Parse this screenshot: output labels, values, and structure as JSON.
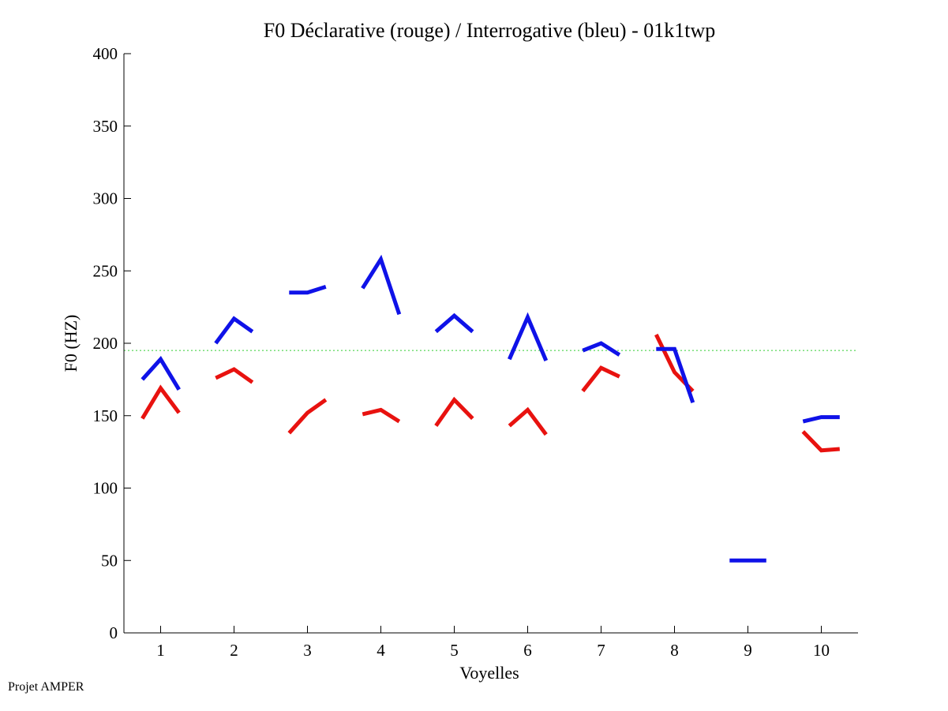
{
  "chart_data": {
    "type": "line",
    "title": "F0 Déclarative (rouge) / Interrogative (bleu) - 01k1twp",
    "xlabel": "Voyelles",
    "ylabel": "F0 (HZ)",
    "xlim": [
      0.5,
      10.5
    ],
    "ylim": [
      0,
      400
    ],
    "xticks": [
      1,
      2,
      3,
      4,
      5,
      6,
      7,
      8,
      9,
      10
    ],
    "yticks": [
      0,
      50,
      100,
      150,
      200,
      250,
      300,
      350,
      400
    ],
    "grid": false,
    "reference_line": {
      "y": 195,
      "color": "#33cc33",
      "style": "dotted"
    },
    "series": [
      {
        "name": "Déclarative",
        "color": "#e8120f",
        "segments": [
          {
            "vowel": 1,
            "points": [
              [
                0.75,
                148
              ],
              [
                1.0,
                169
              ],
              [
                1.25,
                152
              ]
            ]
          },
          {
            "vowel": 2,
            "points": [
              [
                1.75,
                176
              ],
              [
                2.0,
                182
              ],
              [
                2.25,
                173
              ]
            ]
          },
          {
            "vowel": 3,
            "points": [
              [
                2.75,
                138
              ],
              [
                3.0,
                152
              ],
              [
                3.25,
                161
              ]
            ]
          },
          {
            "vowel": 4,
            "points": [
              [
                3.75,
                151
              ],
              [
                4.0,
                154
              ],
              [
                4.25,
                146
              ]
            ]
          },
          {
            "vowel": 5,
            "points": [
              [
                4.75,
                143
              ],
              [
                5.0,
                161
              ],
              [
                5.25,
                148
              ]
            ]
          },
          {
            "vowel": 6,
            "points": [
              [
                5.75,
                143
              ],
              [
                6.0,
                154
              ],
              [
                6.25,
                137
              ]
            ]
          },
          {
            "vowel": 7,
            "points": [
              [
                6.75,
                167
              ],
              [
                7.0,
                183
              ],
              [
                7.25,
                177
              ]
            ]
          },
          {
            "vowel": 8,
            "points": [
              [
                7.75,
                206
              ],
              [
                8.0,
                180
              ],
              [
                8.25,
                167
              ]
            ]
          },
          {
            "vowel": 10,
            "points": [
              [
                9.75,
                139
              ],
              [
                10.0,
                126
              ],
              [
                10.25,
                127
              ]
            ]
          }
        ]
      },
      {
        "name": "Interrogative",
        "color": "#0f12e8",
        "segments": [
          {
            "vowel": 1,
            "points": [
              [
                0.75,
                175
              ],
              [
                1.0,
                189
              ],
              [
                1.25,
                168
              ]
            ]
          },
          {
            "vowel": 2,
            "points": [
              [
                1.75,
                200
              ],
              [
                2.0,
                217
              ],
              [
                2.25,
                208
              ]
            ]
          },
          {
            "vowel": 3,
            "points": [
              [
                2.75,
                235
              ],
              [
                3.0,
                235
              ],
              [
                3.25,
                239
              ]
            ]
          },
          {
            "vowel": 4,
            "points": [
              [
                3.75,
                238
              ],
              [
                4.0,
                258
              ],
              [
                4.25,
                220
              ]
            ]
          },
          {
            "vowel": 5,
            "points": [
              [
                4.75,
                208
              ],
              [
                5.0,
                219
              ],
              [
                5.25,
                208
              ]
            ]
          },
          {
            "vowel": 6,
            "points": [
              [
                5.75,
                189
              ],
              [
                6.0,
                218
              ],
              [
                6.25,
                188
              ]
            ]
          },
          {
            "vowel": 7,
            "points": [
              [
                6.75,
                195
              ],
              [
                7.0,
                200
              ],
              [
                7.25,
                192
              ]
            ]
          },
          {
            "vowel": 8,
            "points": [
              [
                7.75,
                196
              ],
              [
                8.0,
                196
              ],
              [
                8.25,
                159
              ]
            ]
          },
          {
            "vowel": 9,
            "points": [
              [
                8.75,
                50
              ],
              [
                9.0,
                50
              ],
              [
                9.25,
                50
              ]
            ]
          },
          {
            "vowel": 10,
            "points": [
              [
                9.75,
                146
              ],
              [
                10.0,
                149
              ],
              [
                10.25,
                149
              ]
            ]
          }
        ]
      }
    ]
  },
  "footer": {
    "credit": "Projet AMPER"
  }
}
